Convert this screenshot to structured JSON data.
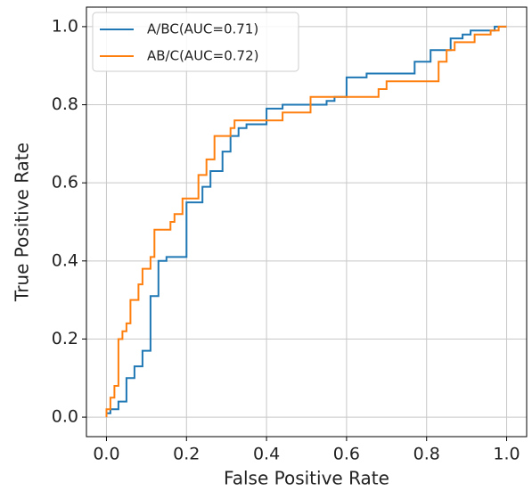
{
  "chart_data": {
    "type": "line",
    "xlabel": "False Positive Rate",
    "ylabel": "True Positive Rate",
    "xlim": [
      -0.05,
      1.05
    ],
    "ylim": [
      -0.05,
      1.05
    ],
    "xticks": [
      {
        "value": 0,
        "label": "0.0"
      },
      0.2,
      0.4,
      0.6,
      0.8,
      {
        "value": 1,
        "label": "1.0"
      }
    ],
    "yticks": [
      {
        "value": 0,
        "label": "0.0"
      },
      0.2,
      0.4,
      0.6,
      0.8,
      {
        "value": 1,
        "label": "1.0"
      }
    ],
    "grid": true,
    "legend": "upper left",
    "series": [
      {
        "name": "A/BC(AUC=0.71)",
        "color": "#1f77b4",
        "x": [
          0,
          0,
          0.01,
          0.01,
          0.03,
          0.03,
          0.05,
          0.05,
          0.07,
          0.07,
          0.09,
          0.09,
          0.11,
          0.11,
          0.13,
          0.13,
          0.15,
          0.15,
          0.2,
          0.2,
          0.24,
          0.24,
          0.26,
          0.26,
          0.29,
          0.29,
          0.31,
          0.31,
          0.33,
          0.33,
          0.35,
          0.35,
          0.4,
          0.4,
          0.44,
          0.44,
          0.55,
          0.55,
          0.57,
          0.57,
          0.6,
          0.6,
          0.65,
          0.65,
          0.77,
          0.77,
          0.81,
          0.81,
          0.86,
          0.86,
          0.89,
          0.89,
          0.91,
          0.91,
          0.97,
          0.97,
          1
        ],
        "values": [
          0,
          0.01,
          0.01,
          0.02,
          0.02,
          0.04,
          0.04,
          0.1,
          0.1,
          0.13,
          0.13,
          0.17,
          0.17,
          0.31,
          0.31,
          0.4,
          0.4,
          0.41,
          0.41,
          0.55,
          0.55,
          0.59,
          0.59,
          0.63,
          0.63,
          0.68,
          0.68,
          0.72,
          0.72,
          0.74,
          0.74,
          0.75,
          0.75,
          0.79,
          0.79,
          0.8,
          0.8,
          0.81,
          0.81,
          0.82,
          0.82,
          0.87,
          0.87,
          0.88,
          0.88,
          0.91,
          0.91,
          0.94,
          0.94,
          0.97,
          0.97,
          0.98,
          0.98,
          0.99,
          0.99,
          1,
          1
        ]
      },
      {
        "name": "AB/C(AUC=0.72)",
        "color": "#ff7f0e",
        "x": [
          0,
          0,
          0.01,
          0.01,
          0.02,
          0.02,
          0.03,
          0.03,
          0.04,
          0.04,
          0.05,
          0.05,
          0.06,
          0.06,
          0.08,
          0.08,
          0.09,
          0.09,
          0.11,
          0.11,
          0.12,
          0.12,
          0.16,
          0.16,
          0.17,
          0.17,
          0.19,
          0.19,
          0.23,
          0.23,
          0.25,
          0.25,
          0.27,
          0.27,
          0.31,
          0.31,
          0.32,
          0.32,
          0.44,
          0.44,
          0.51,
          0.51,
          0.68,
          0.68,
          0.7,
          0.7,
          0.83,
          0.83,
          0.85,
          0.85,
          0.87,
          0.87,
          0.92,
          0.92,
          0.96,
          0.96,
          0.98,
          0.98,
          1
        ],
        "values": [
          0,
          0.02,
          0.02,
          0.05,
          0.05,
          0.08,
          0.08,
          0.2,
          0.2,
          0.22,
          0.22,
          0.24,
          0.24,
          0.3,
          0.3,
          0.34,
          0.34,
          0.38,
          0.38,
          0.41,
          0.41,
          0.48,
          0.48,
          0.5,
          0.5,
          0.52,
          0.52,
          0.56,
          0.56,
          0.62,
          0.62,
          0.66,
          0.66,
          0.72,
          0.72,
          0.74,
          0.74,
          0.76,
          0.76,
          0.78,
          0.78,
          0.82,
          0.82,
          0.84,
          0.84,
          0.86,
          0.86,
          0.91,
          0.91,
          0.94,
          0.94,
          0.96,
          0.96,
          0.98,
          0.98,
          0.99,
          0.99,
          1,
          1
        ]
      }
    ]
  }
}
